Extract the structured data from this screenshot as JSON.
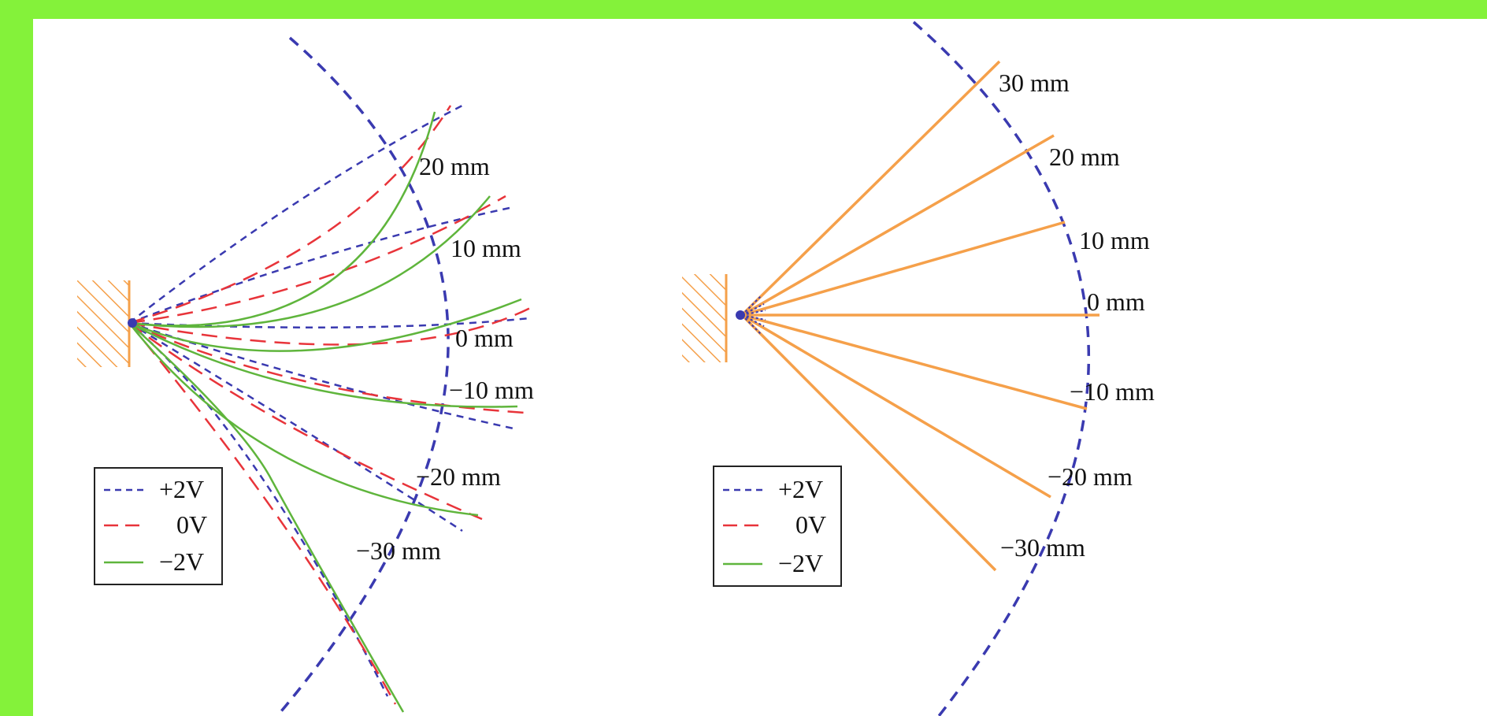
{
  "colors": {
    "frame": "#84f23a",
    "background": "#ffffff",
    "plus2v": "#3a3ab0",
    "zero_v": "#e8343a",
    "minus2v": "#5fb53c",
    "ray": "#f5a04a",
    "wall": "#f5a04a",
    "arc": "#3a3ab0"
  },
  "left_panel": {
    "labels": [
      "20 mm",
      "10 mm",
      "0 mm",
      "−10 mm",
      "−20 mm",
      "−30 mm"
    ],
    "legend": [
      "+2V",
      "0V",
      "−2V"
    ]
  },
  "right_panel": {
    "labels": [
      "30 mm",
      "20 mm",
      "10 mm",
      "0 mm",
      "−10 mm",
      "−20 mm",
      "−30 mm"
    ],
    "legend": [
      "+2V",
      "0V",
      "−2V"
    ]
  }
}
